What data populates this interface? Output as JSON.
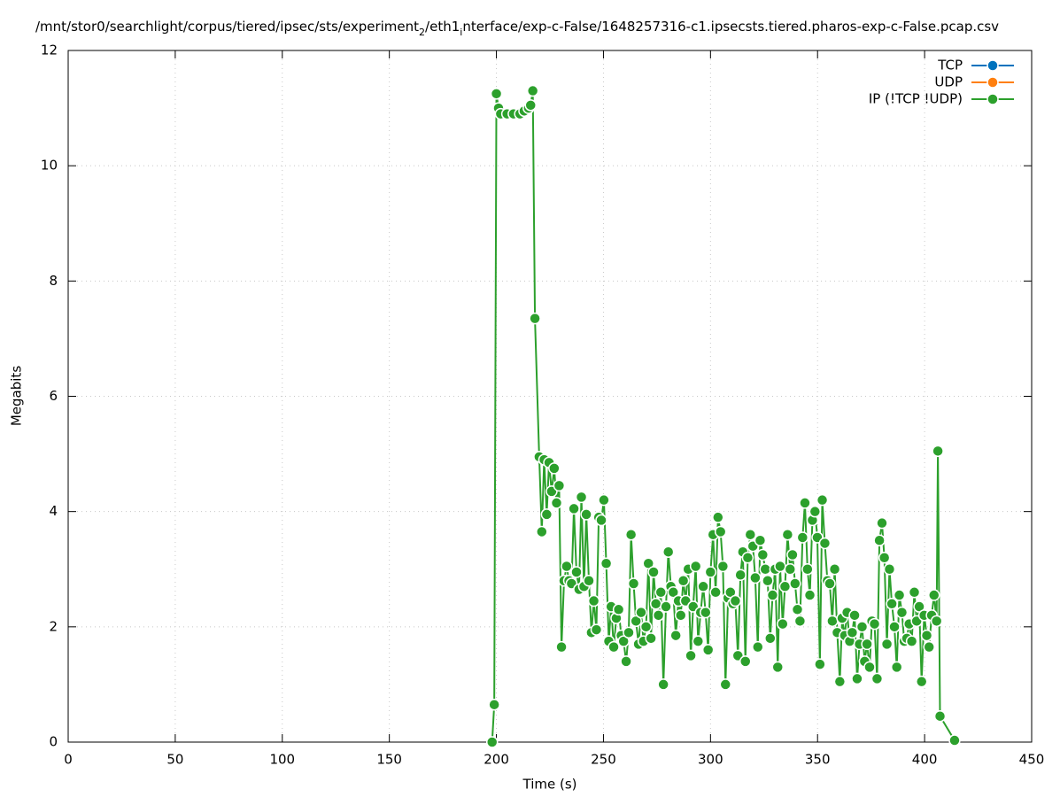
{
  "chart_data": {
    "type": "line",
    "title": [
      {
        "text": "/mnt/stor0/searchlight/corpus/tiered/ipsec/sts/experiment",
        "sub": false
      },
      {
        "text": "2",
        "sub": true
      },
      {
        "text": "/eth1",
        "sub": false
      },
      {
        "text": "i",
        "sub": true
      },
      {
        "text": "nterface/exp-c-False/1648257316-c1.ipsecsts.tiered.pharos-exp-c-False.pcap.csv",
        "sub": false
      }
    ],
    "xlabel": "Time (s)",
    "ylabel": "Megabits",
    "xlim": [
      0,
      450
    ],
    "xticks": [
      0,
      50,
      100,
      150,
      200,
      250,
      300,
      350,
      400,
      450
    ],
    "ylim": [
      0,
      12
    ],
    "yticks": [
      0,
      2,
      4,
      6,
      8,
      10,
      12
    ],
    "grid": true,
    "legend": "top-right",
    "series": [
      {
        "name": "TCP",
        "color": "#0072bd",
        "x": [],
        "values": []
      },
      {
        "name": "UDP",
        "color": "#ff7f0e",
        "x": [],
        "values": []
      },
      {
        "name": "IP (!TCP  !UDP)",
        "color": "#2ca02c",
        "x": [
          198,
          199,
          200,
          201,
          202,
          205,
          208,
          211,
          213,
          215,
          216,
          217,
          218,
          220,
          221.2,
          222.3,
          223.5,
          224.6,
          225.8,
          227.0,
          228.1,
          229.3,
          230.4,
          231.6,
          232.8,
          233.9,
          235.1,
          236.2,
          237.4,
          238.6,
          239.7,
          240.9,
          242.0,
          243.2,
          244.4,
          245.5,
          246.7,
          247.8,
          249.0,
          250.2,
          251.3,
          252.5,
          253.6,
          254.8,
          256.0,
          257.1,
          258.3,
          259.4,
          260.6,
          261.8,
          262.9,
          264.1,
          265.2,
          266.4,
          267.6,
          268.7,
          269.9,
          271.0,
          272.2,
          273.4,
          274.5,
          275.7,
          276.8,
          278.0,
          279.2,
          280.3,
          281.5,
          282.6,
          283.8,
          285.0,
          286.1,
          287.3,
          288.4,
          289.6,
          290.8,
          291.9,
          293.1,
          294.2,
          295.4,
          296.6,
          297.7,
          298.9,
          300.0,
          301.2,
          302.4,
          303.5,
          304.7,
          305.8,
          307.0,
          308.2,
          309.3,
          310.5,
          311.6,
          312.8,
          314.0,
          315.1,
          316.3,
          317.4,
          318.6,
          319.8,
          320.9,
          322.1,
          323.2,
          324.4,
          325.6,
          326.7,
          327.9,
          329.0,
          330.2,
          331.4,
          332.5,
          333.7,
          334.8,
          336.0,
          337.2,
          338.3,
          339.5,
          340.6,
          341.8,
          343.0,
          344.1,
          345.3,
          346.4,
          347.6,
          348.8,
          349.9,
          351.1,
          352.2,
          353.4,
          354.6,
          355.7,
          356.9,
          358.0,
          359.2,
          360.4,
          361.5,
          362.7,
          363.8,
          365.0,
          366.2,
          367.3,
          368.5,
          369.6,
          370.8,
          372.0,
          373.1,
          374.3,
          375.4,
          376.6,
          377.8,
          378.9,
          380.1,
          381.2,
          382.4,
          383.6,
          384.7,
          385.9,
          387.0,
          388.2,
          389.4,
          390.5,
          391.7,
          392.8,
          394.0,
          395.2,
          396.3,
          397.5,
          398.6,
          399.8,
          401.0,
          402.1,
          403.3,
          404.4,
          405.6,
          406.2,
          407.2,
          414
        ],
        "values": [
          0,
          0.65,
          11.25,
          11.0,
          10.9,
          10.9,
          10.9,
          10.9,
          10.95,
          11.0,
          11.05,
          11.3,
          7.35,
          4.95,
          3.65,
          4.9,
          3.95,
          4.85,
          4.35,
          4.75,
          4.15,
          4.45,
          1.65,
          2.8,
          3.05,
          2.8,
          2.75,
          4.05,
          2.95,
          2.65,
          4.25,
          2.7,
          3.95,
          2.8,
          1.9,
          2.45,
          1.95,
          3.9,
          3.85,
          4.2,
          3.1,
          1.75,
          2.35,
          1.65,
          2.15,
          2.3,
          1.85,
          1.75,
          1.4,
          1.9,
          3.6,
          2.75,
          2.1,
          1.7,
          2.25,
          1.75,
          2.0,
          3.1,
          1.8,
          2.95,
          2.4,
          2.2,
          2.6,
          1.0,
          2.35,
          3.3,
          2.7,
          2.6,
          1.85,
          2.45,
          2.2,
          2.8,
          2.45,
          3.0,
          1.5,
          2.35,
          3.05,
          1.75,
          2.25,
          2.7,
          2.25,
          1.6,
          2.95,
          3.6,
          2.6,
          3.9,
          3.65,
          3.05,
          1.0,
          2.5,
          2.6,
          2.4,
          2.45,
          1.5,
          2.9,
          3.3,
          1.4,
          3.2,
          3.6,
          3.4,
          2.85,
          1.65,
          3.5,
          3.25,
          3.0,
          2.8,
          1.8,
          2.55,
          3.0,
          1.3,
          3.05,
          2.05,
          2.7,
          3.6,
          3.0,
          3.25,
          2.75,
          2.3,
          2.1,
          3.55,
          4.15,
          3.0,
          2.55,
          3.85,
          4.0,
          3.55,
          1.35,
          4.2,
          3.45,
          2.8,
          2.75,
          2.1,
          3.0,
          1.9,
          1.05,
          2.15,
          1.85,
          2.25,
          1.75,
          1.9,
          2.2,
          1.1,
          1.7,
          2.0,
          1.4,
          1.7,
          1.3,
          2.1,
          2.05,
          1.1,
          3.5,
          3.8,
          3.2,
          1.7,
          3.0,
          2.4,
          2.0,
          1.3,
          2.55,
          2.25,
          1.75,
          1.8,
          2.05,
          1.75,
          2.6,
          2.1,
          2.35,
          1.05,
          2.2,
          1.85,
          1.65,
          2.2,
          2.55,
          2.1,
          5.05,
          0.45,
          0.03
        ]
      }
    ]
  }
}
